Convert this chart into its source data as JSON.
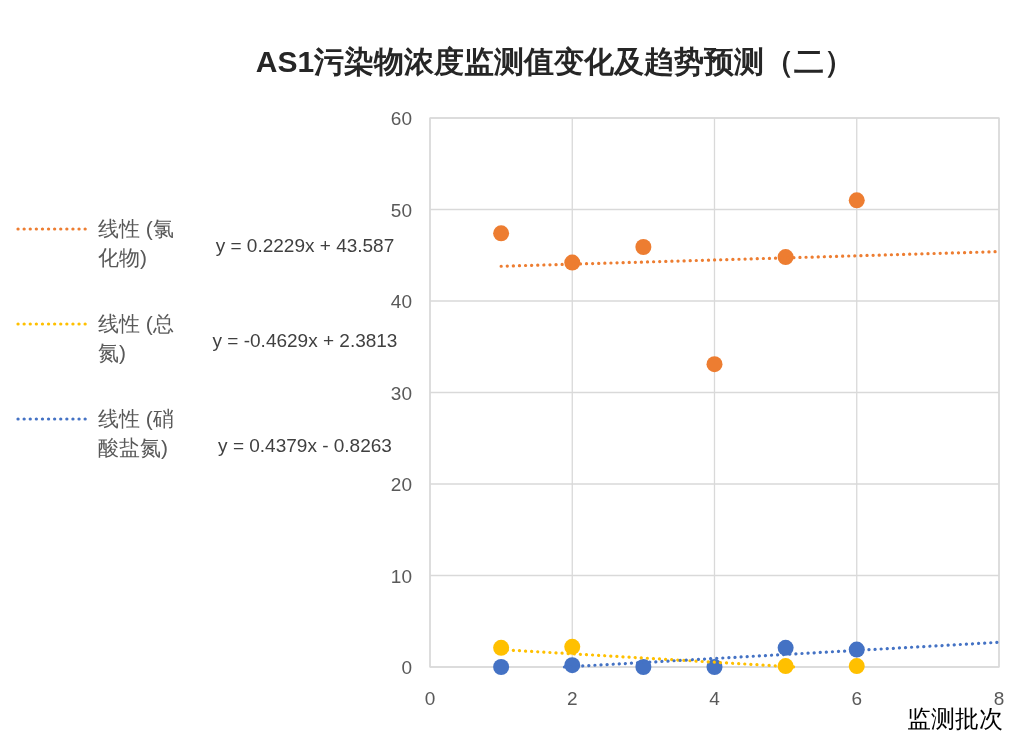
{
  "chart_data": {
    "type": "scatter",
    "title": "AS1污染物浓度监测值变化及趋势预测（二）",
    "xlabel": "监测批次",
    "x": [
      1,
      2,
      3,
      4,
      5,
      6
    ],
    "series": [
      {
        "type": "scatter",
        "color": "#ed7d31",
        "marker": "circle",
        "values": [
          47.4,
          44.2,
          45.9,
          33.1,
          44.8,
          51.0
        ]
      },
      {
        "type": "scatter",
        "color": "#ffc000",
        "marker": "circle",
        "values": [
          2.1,
          2.2,
          null,
          null,
          0.1,
          0.1
        ]
      },
      {
        "type": "scatter",
        "color": "#4472c4",
        "marker": "circle",
        "values": [
          0,
          0.2,
          0,
          0,
          2.1,
          1.9
        ]
      },
      {
        "type": "line",
        "name": "线性 (氯化物)",
        "color": "#ed7d31",
        "line_style": "dotted",
        "x": [
          1,
          8
        ],
        "values": [
          43.8,
          45.4
        ]
      },
      {
        "type": "line",
        "name": "线性 (总氮)",
        "color": "#ffc000",
        "line_style": "dotted",
        "x": [
          1,
          5.14
        ],
        "values": [
          1.9,
          0
        ]
      },
      {
        "type": "line",
        "name": "线性 (硝酸盐氮)",
        "color": "#4472c4",
        "line_style": "dotted",
        "x": [
          1.89,
          8
        ],
        "values": [
          0,
          2.7
        ]
      }
    ],
    "annotations": [
      "y = 0.2229x + 43.587",
      "y = -0.4629x + 2.3813",
      "y = 0.4379x - 0.8263"
    ],
    "xlim": [
      0,
      8
    ],
    "xticks": [
      0,
      2,
      4,
      6,
      8
    ],
    "ylim": [
      0,
      60
    ],
    "yticks": [
      0,
      10,
      20,
      30,
      40,
      50,
      60
    ],
    "grid": true,
    "legend": "left"
  }
}
